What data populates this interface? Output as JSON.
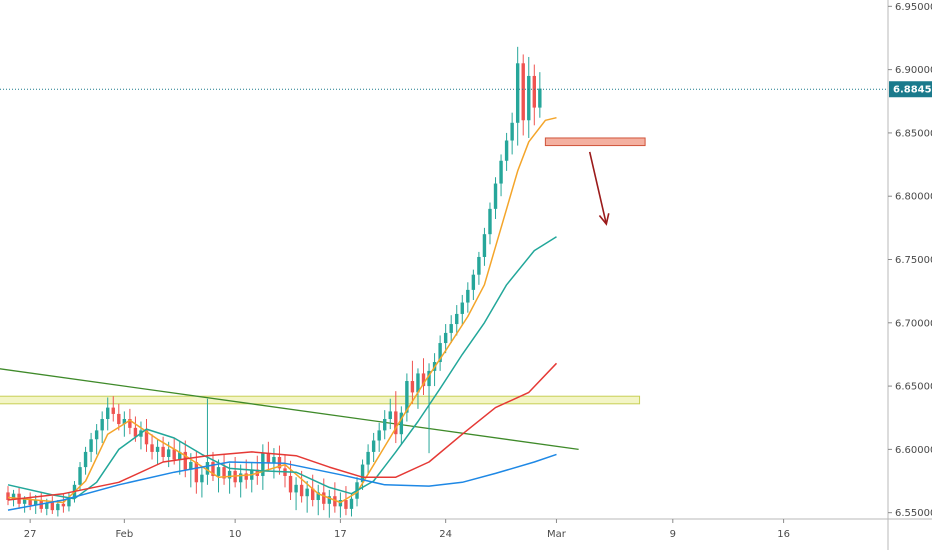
{
  "colors": {
    "up": "#26a69a",
    "down": "#ef5350",
    "ma_fast": "#f4a52a",
    "ma_mid": "#22a79a",
    "ma_slow": "#e53935",
    "ma_long": "#1e88e5",
    "trendline": "#3f8a2a",
    "support_zone": "#f3f5c6",
    "support_border": "#c8cf55",
    "resistance_box": "#f4b0a0",
    "resistance_border": "#d0533a",
    "arrow": "#9b1b1b",
    "price_line": "#1a7a8c",
    "price_tag_bg": "#1a7a8c"
  },
  "chart_data": {
    "type": "candlestick",
    "x_tick_labels": [
      "27",
      "Feb",
      "10",
      "17",
      "24",
      "Mar",
      "9",
      "16"
    ],
    "y_ticks": [
      "6.95000",
      "6.90000",
      "6.85000",
      "6.80000",
      "6.75000",
      "6.70000",
      "6.65000",
      "6.60000",
      "6.55000"
    ],
    "ylim": [
      6.545,
      6.955
    ],
    "current_price": "6.88450",
    "current_price_value": 6.8845,
    "candles_count": 100,
    "candles": [
      [
        6.566,
        6.571,
        6.556,
        6.56
      ],
      [
        6.56,
        6.568,
        6.555,
        6.565
      ],
      [
        6.565,
        6.57,
        6.553,
        6.557
      ],
      [
        6.557,
        6.563,
        6.55,
        6.561
      ],
      [
        6.561,
        6.566,
        6.552,
        6.556
      ],
      [
        6.556,
        6.564,
        6.549,
        6.56
      ],
      [
        6.56,
        6.566,
        6.55,
        6.553
      ],
      [
        6.553,
        6.561,
        6.548,
        6.558
      ],
      [
        6.558,
        6.563,
        6.549,
        6.552
      ],
      [
        6.552,
        6.56,
        6.547,
        6.557
      ],
      [
        6.557,
        6.565,
        6.55,
        6.555
      ],
      [
        6.555,
        6.566,
        6.551,
        6.562
      ],
      [
        6.562,
        6.575,
        6.558,
        6.572
      ],
      [
        6.572,
        6.59,
        6.568,
        6.586
      ],
      [
        6.586,
        6.602,
        6.58,
        6.598
      ],
      [
        6.598,
        6.613,
        6.59,
        6.608
      ],
      [
        6.608,
        6.62,
        6.596,
        6.615
      ],
      [
        6.615,
        6.63,
        6.605,
        6.624
      ],
      [
        6.624,
        6.641,
        6.615,
        6.633
      ],
      [
        6.633,
        6.642,
        6.622,
        6.628
      ],
      [
        6.628,
        6.636,
        6.615,
        6.62
      ],
      [
        6.62,
        6.63,
        6.61,
        6.624
      ],
      [
        6.624,
        6.632,
        6.612,
        6.617
      ],
      [
        6.617,
        6.626,
        6.606,
        6.61
      ],
      [
        6.61,
        6.622,
        6.6,
        6.615
      ],
      [
        6.615,
        6.624,
        6.598,
        6.604
      ],
      [
        6.604,
        6.612,
        6.592,
        6.598
      ],
      [
        6.598,
        6.608,
        6.588,
        6.602
      ],
      [
        6.602,
        6.61,
        6.59,
        6.594
      ],
      [
        6.594,
        6.606,
        6.586,
        6.6
      ],
      [
        6.6,
        6.609,
        6.588,
        6.592
      ],
      [
        6.592,
        6.606,
        6.58,
        6.598
      ],
      [
        6.598,
        6.607,
        6.578,
        6.584
      ],
      [
        6.584,
        6.597,
        6.57,
        6.59
      ],
      [
        6.59,
        6.599,
        6.565,
        6.574
      ],
      [
        6.574,
        6.587,
        6.562,
        6.58
      ],
      [
        6.58,
        6.64,
        6.572,
        6.59
      ],
      [
        6.59,
        6.598,
        6.575,
        6.579
      ],
      [
        6.579,
        6.592,
        6.566,
        6.586
      ],
      [
        6.586,
        6.596,
        6.572,
        6.577
      ],
      [
        6.577,
        6.589,
        6.565,
        6.583
      ],
      [
        6.583,
        6.594,
        6.57,
        6.574
      ],
      [
        6.574,
        6.588,
        6.562,
        6.581
      ],
      [
        6.581,
        6.592,
        6.569,
        6.576
      ],
      [
        6.576,
        6.59,
        6.566,
        6.584
      ],
      [
        6.584,
        6.595,
        6.572,
        6.579
      ],
      [
        6.579,
        6.604,
        6.568,
        6.597
      ],
      [
        6.597,
        6.606,
        6.583,
        6.589
      ],
      [
        6.589,
        6.601,
        6.577,
        6.594
      ],
      [
        6.594,
        6.603,
        6.58,
        6.585
      ],
      [
        6.585,
        6.596,
        6.57,
        6.579
      ],
      [
        6.579,
        6.591,
        6.56,
        6.566
      ],
      [
        6.566,
        6.578,
        6.552,
        6.572
      ],
      [
        6.572,
        6.583,
        6.558,
        6.563
      ],
      [
        6.563,
        6.575,
        6.55,
        6.569
      ],
      [
        6.569,
        6.58,
        6.555,
        6.56
      ],
      [
        6.56,
        6.572,
        6.548,
        6.566
      ],
      [
        6.566,
        6.577,
        6.552,
        6.557
      ],
      [
        6.557,
        6.568,
        6.546,
        6.563
      ],
      [
        6.563,
        6.574,
        6.55,
        6.555
      ],
      [
        6.555,
        6.566,
        6.546,
        6.56
      ],
      [
        6.56,
        6.571,
        6.548,
        6.553
      ],
      [
        6.553,
        6.565,
        6.547,
        6.561
      ],
      [
        6.561,
        6.578,
        6.555,
        6.574
      ],
      [
        6.574,
        6.592,
        6.568,
        6.588
      ],
      [
        6.588,
        6.604,
        6.58,
        6.598
      ],
      [
        6.598,
        6.613,
        6.59,
        6.607
      ],
      [
        6.607,
        6.621,
        6.598,
        6.615
      ],
      [
        6.615,
        6.631,
        6.608,
        6.624
      ],
      [
        6.624,
        6.64,
        6.616,
        6.63
      ],
      [
        6.63,
        6.646,
        6.605,
        6.612
      ],
      [
        6.612,
        6.634,
        6.604,
        6.629
      ],
      [
        6.629,
        6.66,
        6.622,
        6.654
      ],
      [
        6.654,
        6.67,
        6.636,
        6.645
      ],
      [
        6.645,
        6.664,
        6.632,
        6.66
      ],
      [
        6.66,
        6.672,
        6.643,
        6.65
      ],
      [
        6.65,
        6.668,
        6.597,
        6.662
      ],
      [
        6.662,
        6.676,
        6.65,
        6.669
      ],
      [
        6.669,
        6.69,
        6.662,
        6.684
      ],
      [
        6.684,
        6.699,
        6.676,
        6.692
      ],
      [
        6.692,
        6.706,
        6.684,
        6.699
      ],
      [
        6.699,
        6.714,
        6.69,
        6.707
      ],
      [
        6.707,
        6.722,
        6.698,
        6.716
      ],
      [
        6.716,
        6.732,
        6.708,
        6.726
      ],
      [
        6.726,
        6.742,
        6.718,
        6.738
      ],
      [
        6.738,
        6.756,
        6.73,
        6.752
      ],
      [
        6.752,
        6.775,
        6.745,
        6.77
      ],
      [
        6.77,
        6.795,
        6.762,
        6.79
      ],
      [
        6.79,
        6.815,
        6.782,
        6.81
      ],
      [
        6.81,
        6.833,
        6.8,
        6.828
      ],
      [
        6.828,
        6.85,
        6.82,
        6.844
      ],
      [
        6.844,
        6.866,
        6.833,
        6.858
      ],
      [
        6.858,
        6.918,
        6.84,
        6.905
      ],
      [
        6.905,
        6.912,
        6.848,
        6.86
      ],
      [
        6.86,
        6.91,
        6.846,
        6.895
      ],
      [
        6.895,
        6.904,
        6.856,
        6.87
      ],
      [
        6.87,
        6.898,
        6.862,
        6.885
      ]
    ],
    "moving_averages": [
      {
        "key": "ma_fast",
        "points": [
          [
            0,
            6.562
          ],
          [
            10,
            6.558
          ],
          [
            14,
            6.575
          ],
          [
            18,
            6.612
          ],
          [
            22,
            6.623
          ],
          [
            27,
            6.608
          ],
          [
            32,
            6.595
          ],
          [
            38,
            6.578
          ],
          [
            44,
            6.58
          ],
          [
            50,
            6.588
          ],
          [
            56,
            6.565
          ],
          [
            60,
            6.558
          ],
          [
            63,
            6.566
          ],
          [
            67,
            6.595
          ],
          [
            71,
            6.624
          ],
          [
            75,
            6.652
          ],
          [
            79,
            6.678
          ],
          [
            83,
            6.705
          ],
          [
            86,
            6.73
          ],
          [
            88,
            6.76
          ],
          [
            90,
            6.79
          ],
          [
            92,
            6.82
          ],
          [
            94,
            6.843
          ],
          [
            97,
            6.86
          ],
          [
            99,
            6.862
          ]
        ]
      },
      {
        "key": "ma_mid",
        "points": [
          [
            0,
            6.572
          ],
          [
            8,
            6.564
          ],
          [
            12,
            6.561
          ],
          [
            16,
            6.574
          ],
          [
            20,
            6.6
          ],
          [
            25,
            6.616
          ],
          [
            30,
            6.609
          ],
          [
            35,
            6.596
          ],
          [
            40,
            6.585
          ],
          [
            46,
            6.583
          ],
          [
            52,
            6.582
          ],
          [
            58,
            6.57
          ],
          [
            62,
            6.565
          ],
          [
            66,
            6.575
          ],
          [
            70,
            6.598
          ],
          [
            74,
            6.622
          ],
          [
            78,
            6.648
          ],
          [
            82,
            6.675
          ],
          [
            86,
            6.7
          ],
          [
            90,
            6.73
          ],
          [
            95,
            6.757
          ],
          [
            99,
            6.768
          ]
        ]
      },
      {
        "key": "ma_slow",
        "points": [
          [
            0,
            6.56
          ],
          [
            10,
            6.565
          ],
          [
            20,
            6.574
          ],
          [
            28,
            6.59
          ],
          [
            36,
            6.595
          ],
          [
            44,
            6.598
          ],
          [
            52,
            6.595
          ],
          [
            58,
            6.586
          ],
          [
            64,
            6.578
          ],
          [
            70,
            6.578
          ],
          [
            76,
            6.59
          ],
          [
            82,
            6.612
          ],
          [
            88,
            6.633
          ],
          [
            94,
            6.645
          ],
          [
            99,
            6.668
          ]
        ]
      },
      {
        "key": "ma_long",
        "points": [
          [
            0,
            6.552
          ],
          [
            10,
            6.56
          ],
          [
            20,
            6.572
          ],
          [
            30,
            6.582
          ],
          [
            40,
            6.59
          ],
          [
            50,
            6.589
          ],
          [
            60,
            6.58
          ],
          [
            68,
            6.572
          ],
          [
            76,
            6.571
          ],
          [
            82,
            6.574
          ],
          [
            88,
            6.581
          ],
          [
            95,
            6.59
          ],
          [
            99,
            6.596
          ]
        ]
      }
    ],
    "annotations": {
      "trendline": {
        "x1_index": -2,
        "y1": 6.664,
        "x2_index": 103,
        "y2": 6.6
      },
      "support_zone": {
        "x_start_index": -2,
        "x_end_index": 114,
        "y_low": 6.636,
        "y_high": 6.642
      },
      "resistance_box": {
        "x_start_index": 97,
        "x_end_index": 115,
        "y_low": 6.84,
        "y_high": 6.846
      },
      "arrow": {
        "x1_index": 105,
        "y1": 6.835,
        "x2_index": 108,
        "y2": 6.778
      }
    }
  }
}
